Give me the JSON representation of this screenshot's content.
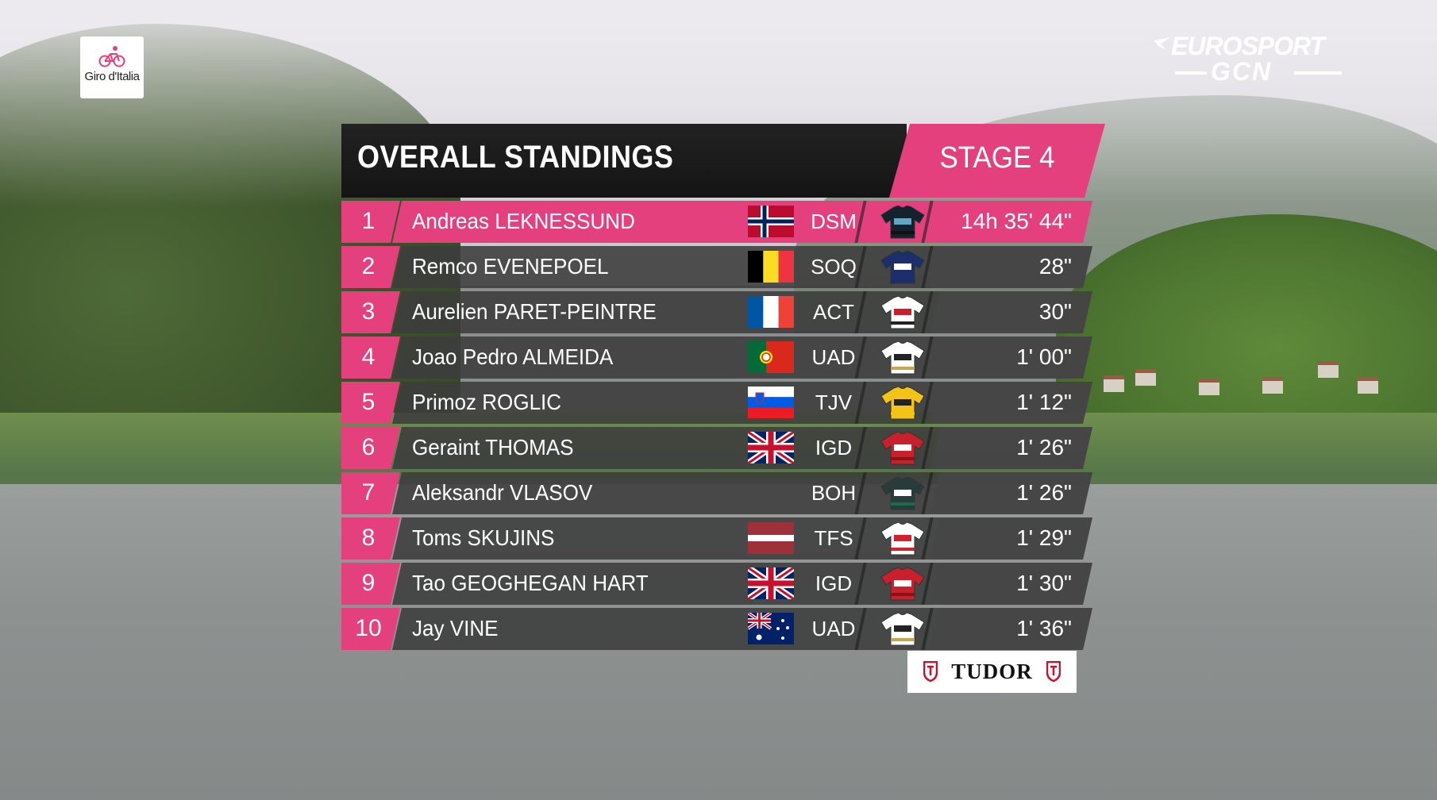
{
  "giro_logo": {
    "text": "Giro d'Italia"
  },
  "broadcaster": {
    "line1": "EUROSPORT",
    "line2": "GCN"
  },
  "header": {
    "title": "OVERALL STANDINGS",
    "stage": "STAGE 4"
  },
  "standings": [
    {
      "pos": "1",
      "name": "Andreas LEKNESSUND",
      "flag": "norway",
      "team": "DSM",
      "jersey": "dsm",
      "time": "14h 35' 44\""
    },
    {
      "pos": "2",
      "name": "Remco EVENEPOEL",
      "flag": "belgium",
      "team": "SOQ",
      "jersey": "soq",
      "time": "28\""
    },
    {
      "pos": "3",
      "name": "Aurelien PARET-PEINTRE",
      "flag": "france",
      "team": "ACT",
      "jersey": "act",
      "time": "30\""
    },
    {
      "pos": "4",
      "name": "Joao Pedro ALMEIDA",
      "flag": "portugal",
      "team": "UAD",
      "jersey": "uad",
      "time": "1' 00\""
    },
    {
      "pos": "5",
      "name": "Primoz ROGLIC",
      "flag": "slovenia",
      "team": "TJV",
      "jersey": "tjv",
      "time": "1' 12\""
    },
    {
      "pos": "6",
      "name": "Geraint THOMAS",
      "flag": "uk",
      "team": "IGD",
      "jersey": "igd",
      "time": "1' 26\""
    },
    {
      "pos": "7",
      "name": "Aleksandr VLASOV",
      "flag": "none",
      "team": "BOH",
      "jersey": "boh",
      "time": "1' 26\""
    },
    {
      "pos": "8",
      "name": "Toms SKUJINS",
      "flag": "latvia",
      "team": "TFS",
      "jersey": "tfs",
      "time": "1' 29\""
    },
    {
      "pos": "9",
      "name": "Tao GEOGHEGAN HART",
      "flag": "uk",
      "team": "IGD",
      "jersey": "igd",
      "time": "1' 30\""
    },
    {
      "pos": "10",
      "name": "Jay VINE",
      "flag": "australia",
      "team": "UAD",
      "jersey": "uad",
      "time": "1' 36\""
    }
  ],
  "sponsor": {
    "text": "TUDOR"
  },
  "colors": {
    "accent_pink": "#e4407e",
    "row_grey": "#3c3c3c",
    "header_black": "#161616"
  }
}
